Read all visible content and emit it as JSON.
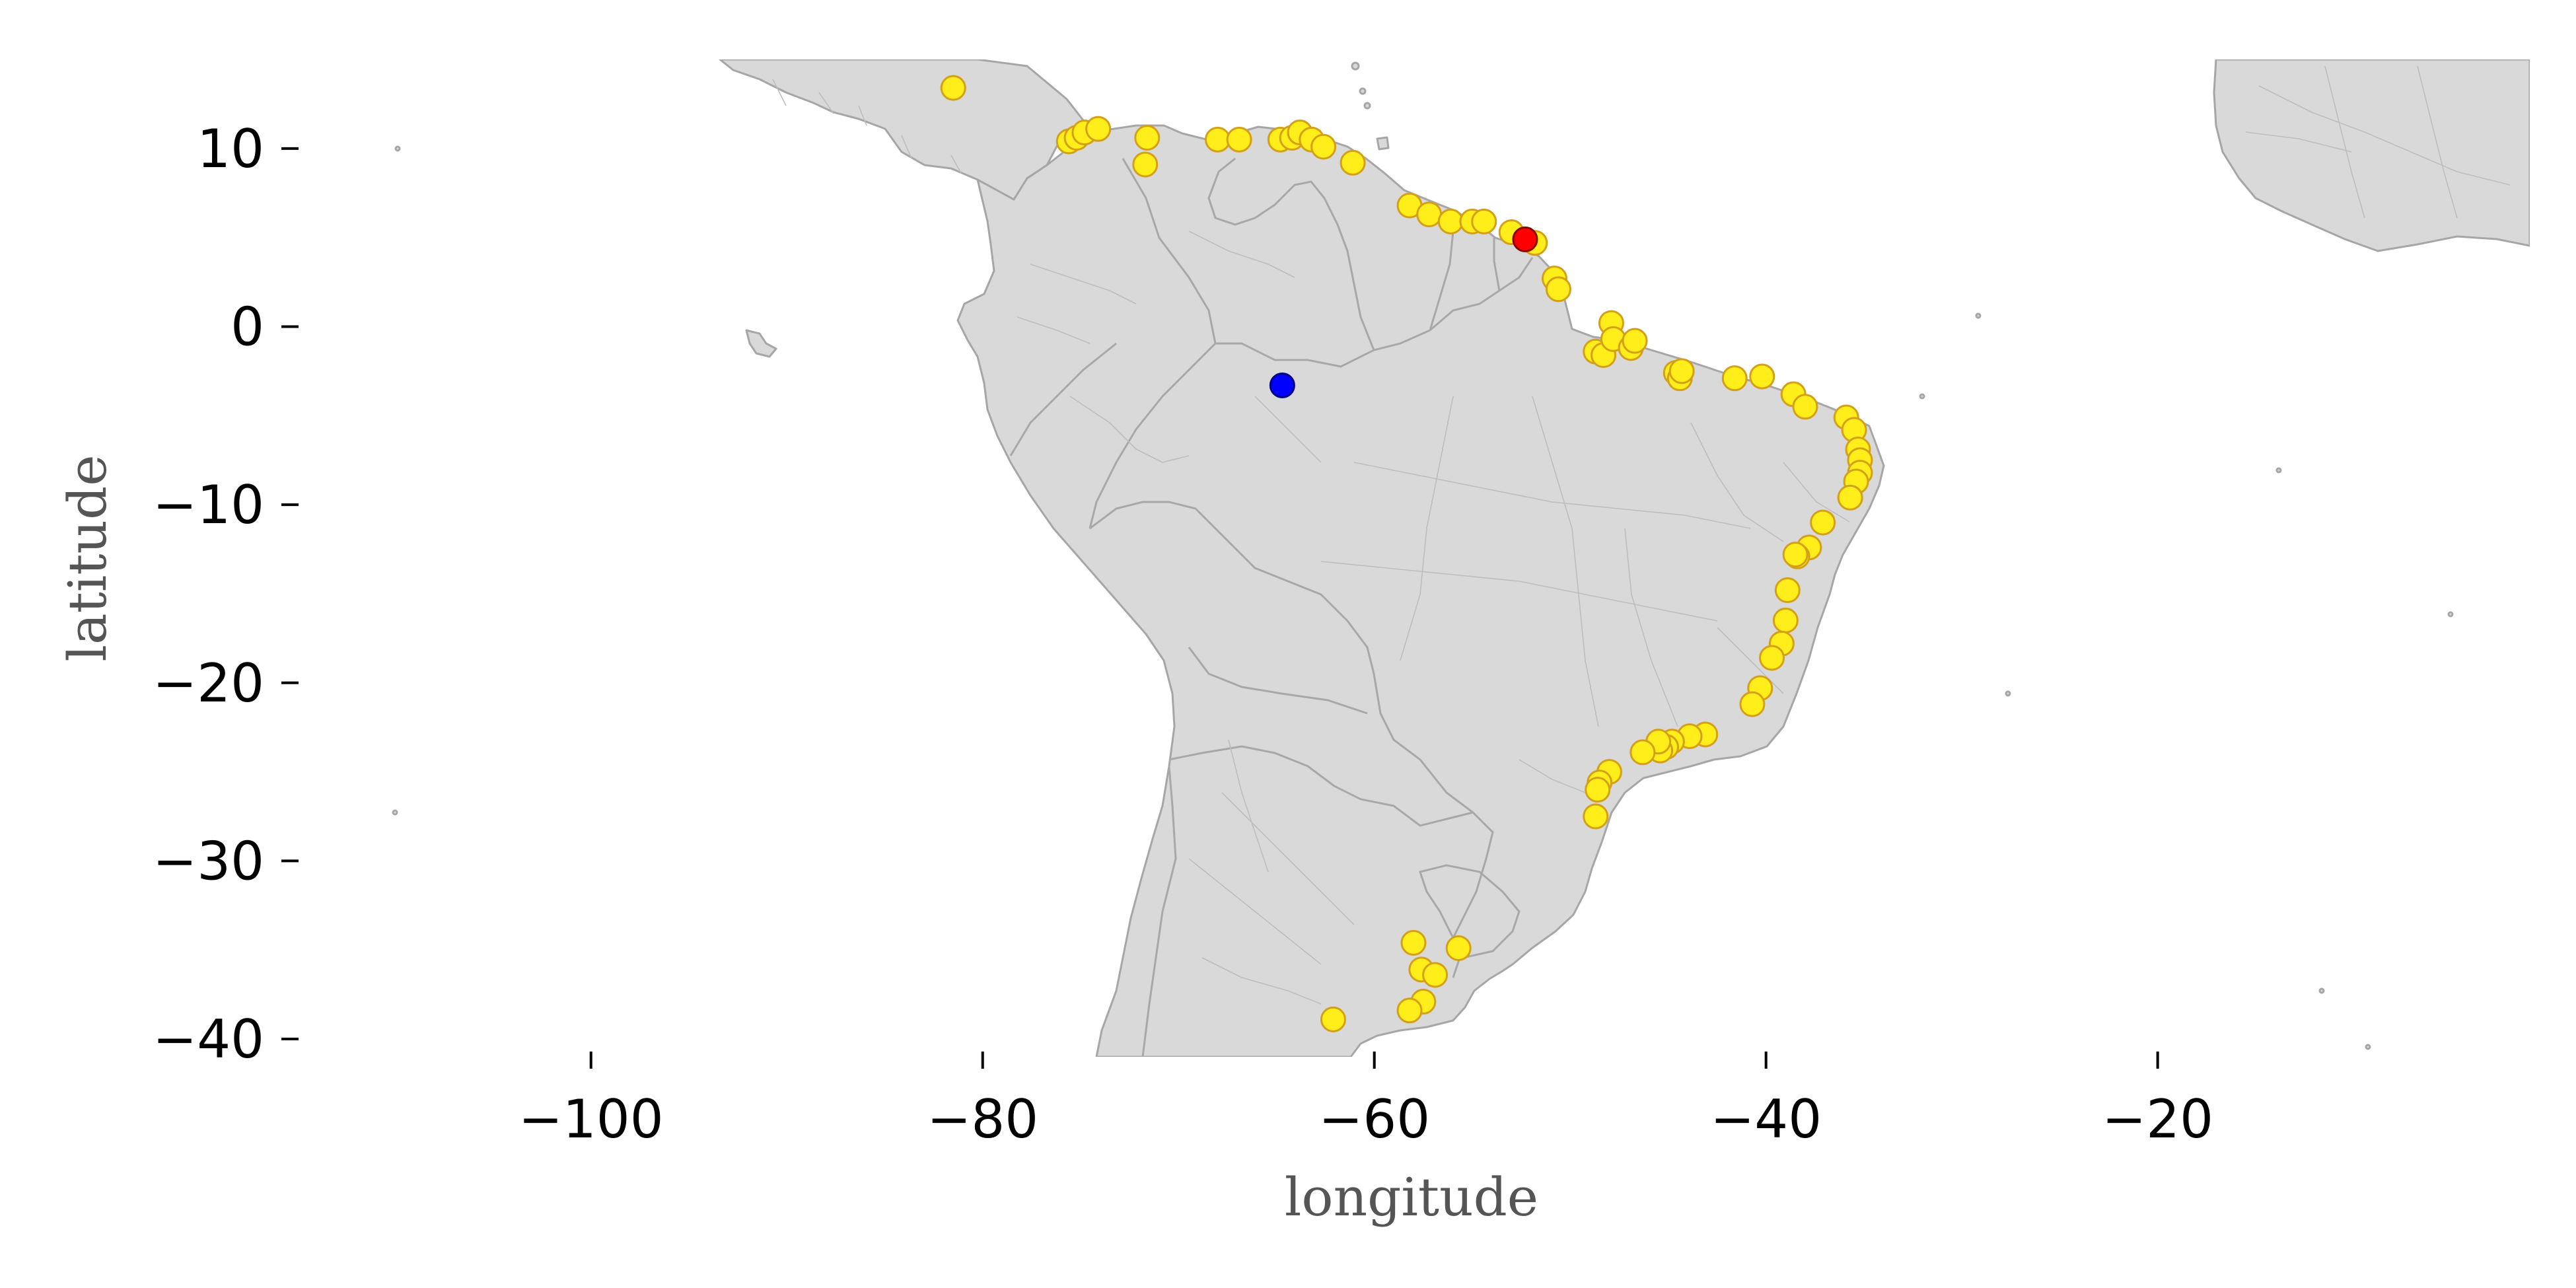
{
  "chart_data": {
    "type": "scatter",
    "title": "",
    "xlabel": "longitude",
    "ylabel": "latitude",
    "xlim": [
      -115,
      -1
    ],
    "ylim": [
      -41,
      15
    ],
    "xticks": [
      -100,
      -80,
      -60,
      -40,
      -20
    ],
    "yticks": [
      10,
      0,
      -10,
      -20,
      -30,
      -40
    ],
    "xtick_labels": [
      "−100",
      "−80",
      "−60",
      "−40",
      "−20"
    ],
    "ytick_labels": [
      "10",
      "0",
      "−10",
      "−20",
      "−30",
      "−40"
    ],
    "grid": false,
    "basemap": "South America and West Africa with national and state borders",
    "colors": {
      "land": "#d9d9d9",
      "border": "#a6a6a6",
      "coastal_fill": "#ffee1a",
      "coastal_edge": "#d4a017",
      "highlight_red": "#ff0000",
      "highlight_blue": "#0000ff"
    },
    "series": [
      {
        "marker": "circle",
        "color": "#ffee1a",
        "points": [
          [
            -81.5,
            13.4
          ],
          [
            -75.6,
            10.4
          ],
          [
            -75.2,
            10.6
          ],
          [
            -74.8,
            10.9
          ],
          [
            -74.1,
            11.1
          ],
          [
            -71.6,
            10.6
          ],
          [
            -71.7,
            9.1
          ],
          [
            -68.0,
            10.5
          ],
          [
            -66.9,
            10.5
          ],
          [
            -64.8,
            10.5
          ],
          [
            -64.2,
            10.6
          ],
          [
            -63.8,
            10.9
          ],
          [
            -63.2,
            10.5
          ],
          [
            -62.6,
            10.1
          ],
          [
            -61.1,
            9.2
          ],
          [
            -58.2,
            6.8
          ],
          [
            -57.2,
            6.3
          ],
          [
            -56.1,
            5.9
          ],
          [
            -55.0,
            5.9
          ],
          [
            -54.4,
            5.9
          ],
          [
            -53.0,
            5.3
          ],
          [
            -51.8,
            4.7
          ],
          [
            -50.8,
            2.7
          ],
          [
            -50.6,
            2.1
          ],
          [
            -48.7,
            -1.4
          ],
          [
            -48.3,
            -1.6
          ],
          [
            -47.9,
            0.2
          ],
          [
            -47.8,
            -0.7
          ],
          [
            -46.9,
            -1.2
          ],
          [
            -46.7,
            -0.8
          ],
          [
            -44.6,
            -2.6
          ],
          [
            -44.4,
            -2.9
          ],
          [
            -44.3,
            -2.5
          ],
          [
            -41.6,
            -2.9
          ],
          [
            -40.2,
            -2.8
          ],
          [
            -38.6,
            -3.8
          ],
          [
            -38.0,
            -4.5
          ],
          [
            -35.9,
            -5.1
          ],
          [
            -35.5,
            -5.8
          ],
          [
            -35.3,
            -6.9
          ],
          [
            -35.2,
            -7.5
          ],
          [
            -35.2,
            -8.2
          ],
          [
            -35.4,
            -8.7
          ],
          [
            -35.7,
            -9.6
          ],
          [
            -37.1,
            -11.0
          ],
          [
            -37.8,
            -12.4
          ],
          [
            -38.4,
            -12.9
          ],
          [
            -38.5,
            -12.8
          ],
          [
            -38.9,
            -14.8
          ],
          [
            -39.0,
            -16.5
          ],
          [
            -39.2,
            -17.8
          ],
          [
            -39.7,
            -18.6
          ],
          [
            -40.3,
            -20.3
          ],
          [
            -40.7,
            -21.2
          ],
          [
            -43.1,
            -22.9
          ],
          [
            -43.9,
            -23.0
          ],
          [
            -44.8,
            -23.3
          ],
          [
            -45.1,
            -23.6
          ],
          [
            -45.4,
            -23.8
          ],
          [
            -45.5,
            -23.3
          ],
          [
            -46.3,
            -23.9
          ],
          [
            -48.0,
            -25.0
          ],
          [
            -48.5,
            -25.6
          ],
          [
            -48.6,
            -26.0
          ],
          [
            -48.7,
            -27.5
          ],
          [
            -58.0,
            -34.6
          ],
          [
            -57.6,
            -36.1
          ],
          [
            -56.9,
            -36.4
          ],
          [
            -55.7,
            -34.9
          ],
          [
            -57.5,
            -37.9
          ],
          [
            -58.2,
            -38.4
          ],
          [
            -62.1,
            -38.9
          ]
        ]
      },
      {
        "marker": "circle",
        "color": "#ff0000",
        "points": [
          [
            -52.3,
            4.9
          ]
        ]
      },
      {
        "marker": "circle",
        "color": "#0000ff",
        "points": [
          [
            -64.7,
            -3.3
          ]
        ]
      }
    ]
  }
}
